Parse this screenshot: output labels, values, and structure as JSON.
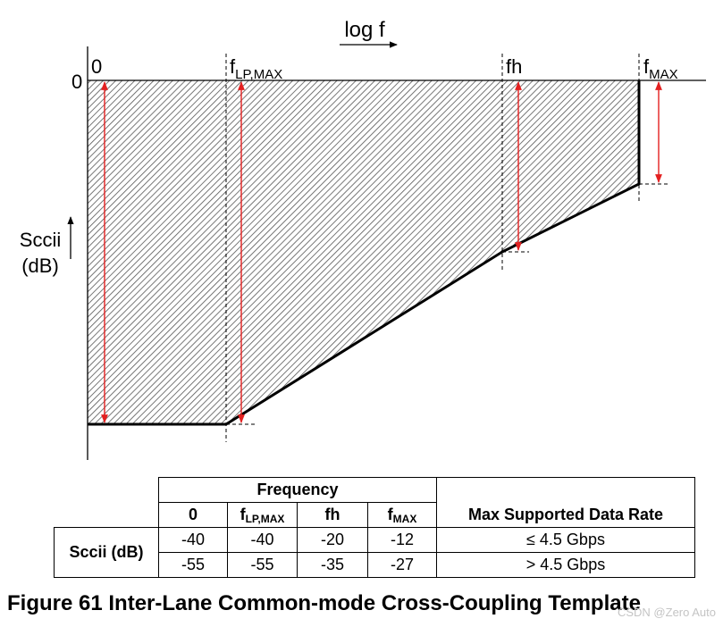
{
  "diagram": {
    "axis_x_label": "log f",
    "axis_y_label_line1": "Sccii",
    "axis_y_label_line2": "(dB)",
    "y_zero_label": "0",
    "freq_markers": [
      {
        "main": "0",
        "sub": ""
      },
      {
        "main": "f",
        "sub": "LP,MAX"
      },
      {
        "main": "fh",
        "sub": ""
      },
      {
        "main": "f",
        "sub": "MAX"
      }
    ]
  },
  "table": {
    "group_header": "Frequency",
    "col_headers": [
      {
        "main": "0",
        "sub": ""
      },
      {
        "main": "f",
        "sub": "LP,MAX"
      },
      {
        "main": "fh",
        "sub": ""
      },
      {
        "main": "f",
        "sub": "MAX"
      }
    ],
    "rate_header": "Max Supported Data Rate",
    "row_label": "Sccii (dB)",
    "rows": [
      {
        "values": [
          "-40",
          "-40",
          "-20",
          "-12"
        ],
        "rate": "≤ 4.5 Gbps"
      },
      {
        "values": [
          "-55",
          "-55",
          "-35",
          "-27"
        ],
        "rate": "> 4.5 Gbps"
      }
    ]
  },
  "caption": "Figure 61 Inter-Lane Common-mode Cross-Coupling Template",
  "watermark": "CSDN @Zero Auto",
  "colors": {
    "arrow": "#e32020",
    "line": "#000000",
    "hatch": "#555555"
  }
}
